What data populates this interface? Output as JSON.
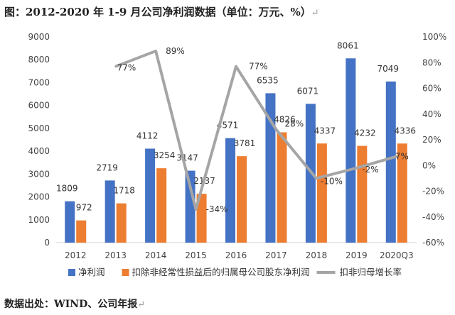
{
  "title": "图：2012-2020 年 1-9 月公司净利润数据（单位：万元、%）",
  "return_mark": "↵",
  "source": "数据出处：WIND、公司年报",
  "chart_data": {
    "type": "bar",
    "categories": [
      "2012",
      "2013",
      "2014",
      "2015",
      "2016",
      "2017",
      "2018",
      "2019",
      "2020Q3"
    ],
    "y_left_ticks": [
      "0",
      "1000",
      "2000",
      "3000",
      "4000",
      "5000",
      "6000",
      "7000",
      "8000",
      "9000"
    ],
    "ylim_left": [
      0,
      9000
    ],
    "y_right_ticks": [
      "-60%",
      "-40%",
      "-20%",
      "0%",
      "20%",
      "40%",
      "60%",
      "80%",
      "100%"
    ],
    "ylim_right": [
      -60,
      100
    ],
    "series": [
      {
        "name": "净利润",
        "kind": "bar",
        "axis": "left",
        "color": "#4472C4",
        "values": [
          1809,
          2719,
          4112,
          3147,
          4571,
          6535,
          6071,
          8061,
          7049
        ],
        "labels": [
          "1809",
          "2719",
          "4112",
          "3147",
          "4571",
          "6535",
          "6071",
          "8061",
          "7049"
        ]
      },
      {
        "name": "扣除非经常性损益后的归属母公司股东净利润",
        "kind": "bar",
        "axis": "left",
        "color": "#ED7D31",
        "values": [
          972,
          1718,
          3254,
          2137,
          3781,
          4826,
          4337,
          4232,
          4336
        ],
        "labels": [
          "972",
          "1718",
          "3254",
          "2137",
          "3781",
          "4826",
          "4337",
          "4232",
          "4336"
        ]
      },
      {
        "name": "扣非归母增长率",
        "kind": "line",
        "axis": "right",
        "color": "#A5A5A5",
        "values": [
          null,
          77,
          89,
          -34,
          77,
          28,
          -10,
          -2,
          7
        ],
        "labels": [
          "",
          "77%",
          "89%",
          "-34%",
          "77%",
          "28%",
          "-10%",
          "-2%",
          "7%"
        ]
      }
    ],
    "legend_position": "bottom",
    "grid": false
  }
}
